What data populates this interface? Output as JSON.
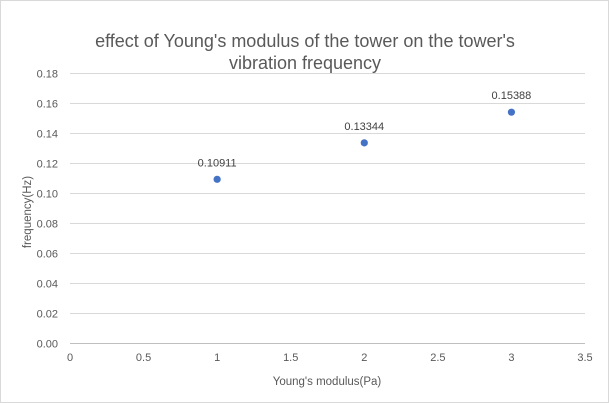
{
  "chart_data": {
    "type": "scatter",
    "title_lines": [
      "effect of Young's modulus of the tower on the tower's",
      "vibration frequency"
    ],
    "xlabel": "Young's modulus(Pa)",
    "ylabel": "frequency(Hz)",
    "xlim": [
      0,
      3.5
    ],
    "ylim": [
      0,
      0.18
    ],
    "x_ticks": [
      "0",
      "0.5",
      "1",
      "1.5",
      "2",
      "2.5",
      "3",
      "3.5"
    ],
    "x_tick_values": [
      0,
      0.5,
      1,
      1.5,
      2,
      2.5,
      3,
      3.5
    ],
    "y_ticks": [
      "0.00",
      "0.02",
      "0.04",
      "0.06",
      "0.08",
      "0.10",
      "0.12",
      "0.14",
      "0.16",
      "0.18"
    ],
    "y_tick_values": [
      0,
      0.02,
      0.04,
      0.06,
      0.08,
      0.1,
      0.12,
      0.14,
      0.16,
      0.18
    ],
    "grid": "horizontal",
    "series": [
      {
        "name": "frequency",
        "color": "#4472c4",
        "x": [
          1,
          2,
          3
        ],
        "y": [
          0.10911,
          0.13344,
          0.15388
        ],
        "labels": [
          "0.10911",
          "0.13344",
          "0.15388"
        ]
      }
    ]
  }
}
